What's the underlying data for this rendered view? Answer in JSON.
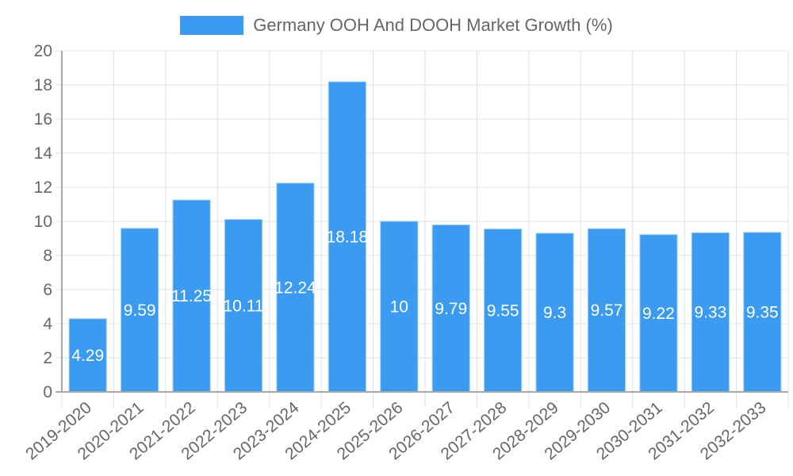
{
  "legend": {
    "label": "Germany OOH And DOOH Market Growth (%)",
    "color": "#3a9bf0"
  },
  "colors": {
    "bar": "#3a9bf0",
    "bar_border": "#9cccf7",
    "grid": "#e0e0e0",
    "axis": "#a8a8a8",
    "tick_text": "#666666",
    "label_text": "#ffffff"
  },
  "chart_data": {
    "type": "bar",
    "title": "",
    "xlabel": "",
    "ylabel": "",
    "ylim": [
      0,
      20
    ],
    "yticks": [
      0,
      2,
      4,
      6,
      8,
      10,
      12,
      14,
      16,
      18,
      20
    ],
    "grid": true,
    "legend_position": "top",
    "categories": [
      "2019-2020",
      "2020-2021",
      "2021-2022",
      "2022-2023",
      "2023-2024",
      "2024-2025",
      "2025-2026",
      "2026-2027",
      "2027-2028",
      "2028-2029",
      "2029-2030",
      "2030-2031",
      "2031-2032",
      "2032-2033"
    ],
    "series": [
      {
        "name": "Germany OOH And DOOH Market Growth (%)",
        "values": [
          4.29,
          9.59,
          11.25,
          10.11,
          12.24,
          18.18,
          10,
          9.79,
          9.55,
          9.3,
          9.57,
          9.22,
          9.33,
          9.35
        ],
        "labels": [
          "4.29",
          "9.59",
          "11.25",
          "10.11",
          "12.24",
          "18.18",
          "10",
          "9.79",
          "9.55",
          "9.3",
          "9.57",
          "9.22",
          "9.33",
          "9.35"
        ]
      }
    ]
  }
}
